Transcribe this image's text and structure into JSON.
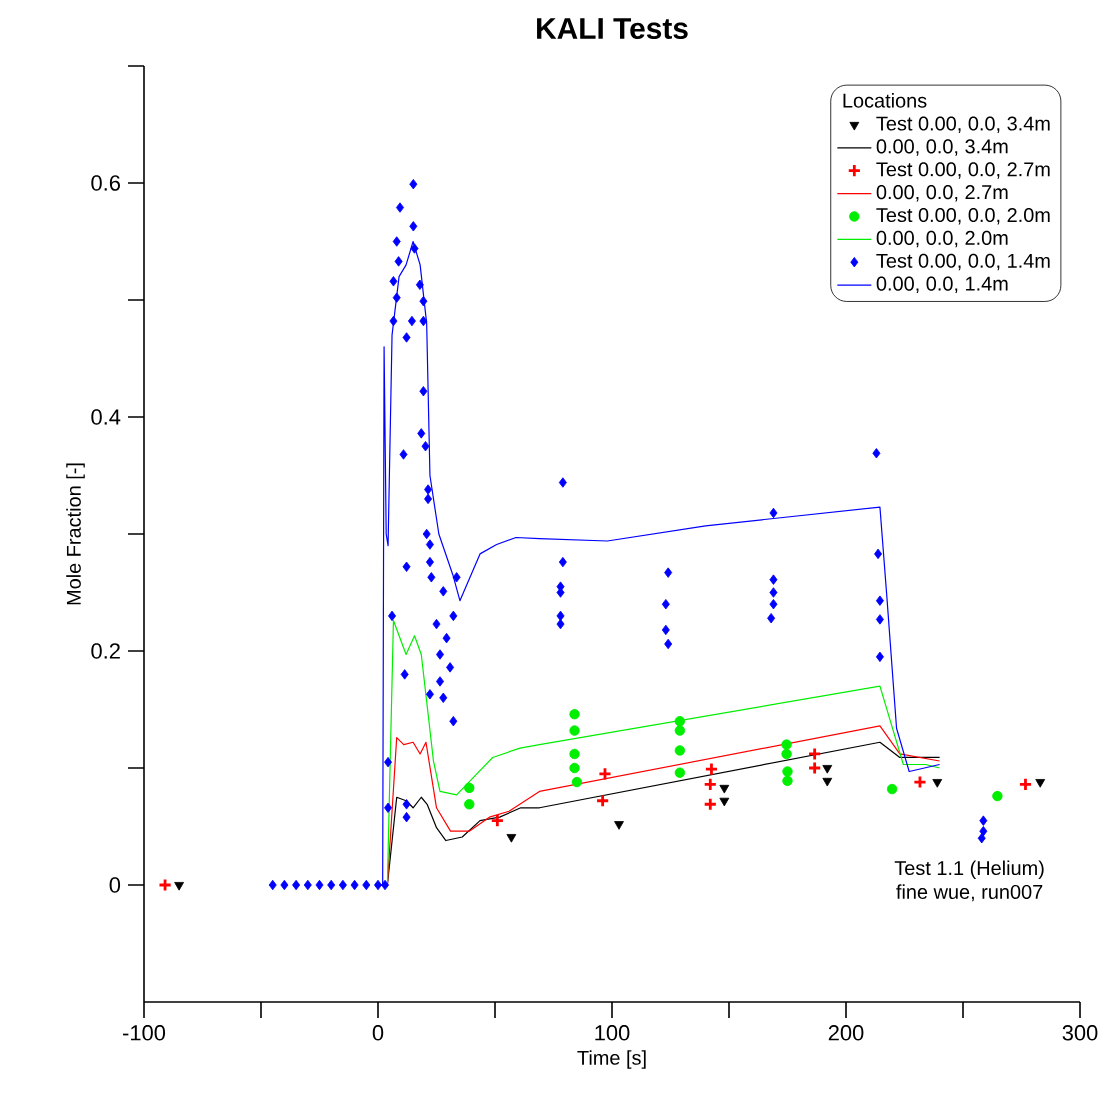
{
  "chart_data": {
    "type": "line",
    "title": "KALI Tests",
    "xlabel": "Time [s]",
    "ylabel": "Mole Fraction [-]",
    "legend_title": "Locations",
    "xlim": [
      -100,
      300
    ],
    "ylim": [
      -0.1,
      0.7
    ],
    "xticks": [
      -100,
      {
        "value": -50,
        "label": null
      },
      0,
      {
        "value": 50,
        "label": null
      },
      100,
      {
        "value": 150,
        "label": null
      },
      200,
      {
        "value": 250,
        "label": null
      },
      300
    ],
    "yticks": [
      0,
      {
        "value": 0.1,
        "label": null
      },
      0.2,
      {
        "value": 0.3,
        "label": null
      },
      0.4,
      {
        "value": 0.5,
        "label": null
      },
      0.6,
      {
        "value": 0.7,
        "label": null
      }
    ],
    "grid": false,
    "legend": "top right",
    "annotations": [
      "Test 1.1 (Helium)",
      "fine wue, run007"
    ],
    "series": [
      {
        "name": "Test 0.00, 0.0, 3.4m",
        "type": "scatter",
        "marker": "triangle",
        "color": "#000000",
        "x": [
          -85,
          57,
          103,
          148,
          148,
          192,
          192,
          239,
          283
        ],
        "values": [
          0,
          0.041,
          0.052,
          0.072,
          0.083,
          0.089,
          0.1,
          0.088,
          0.088
        ]
      },
      {
        "name": "0.00, 0.0, 3.4m",
        "type": "line",
        "color": "#000000",
        "x": [
          0,
          4,
          8,
          12,
          15,
          18.5,
          21,
          25,
          29,
          36,
          43.6,
          52,
          61,
          69,
          214.5,
          223,
          240
        ],
        "values": [
          0,
          0,
          0.075,
          0.072,
          0.066,
          0.075,
          0.069,
          0.049,
          0.038,
          0.041,
          0.055,
          0.058,
          0.066,
          0.066,
          0.122,
          0.109,
          0.109
        ]
      },
      {
        "name": "Test 0.00, 0.0, 2.7m",
        "type": "scatter",
        "marker": "cross",
        "color": "#ff0000",
        "x": [
          -91,
          51,
          97,
          96,
          142.5,
          142,
          142,
          186.6,
          186.6,
          231.6,
          276.7
        ],
        "values": [
          0,
          0.055,
          0.095,
          0.072,
          0.099,
          0.086,
          0.069,
          0.112,
          0.1,
          0.088,
          0.086
        ]
      },
      {
        "name": "0.00, 0.0, 2.7m",
        "type": "line",
        "color": "#ff0000",
        "x": [
          0,
          4,
          8,
          11,
          15,
          18,
          20.5,
          25,
          31,
          39,
          47.6,
          56,
          69,
          214.5,
          223,
          240
        ],
        "values": [
          0,
          0,
          0.126,
          0.12,
          0.122,
          0.112,
          0.122,
          0.066,
          0.046,
          0.046,
          0.058,
          0.063,
          0.08,
          0.136,
          0.112,
          0.106
        ]
      },
      {
        "name": "Test 0.00, 0.0, 2.0m",
        "type": "scatter",
        "marker": "circle",
        "color": "#00ee00",
        "x": [
          39,
          39,
          84,
          84,
          84,
          84,
          85,
          129,
          129,
          129,
          129,
          174.6,
          174.6,
          175,
          175,
          219.7,
          264.7
        ],
        "values": [
          0.083,
          0.069,
          0.146,
          0.132,
          0.112,
          0.1,
          0.088,
          0.14,
          0.132,
          0.115,
          0.096,
          0.12,
          0.112,
          0.097,
          0.089,
          0.082,
          0.076
        ]
      },
      {
        "name": "0.00, 0.0, 2.0m",
        "type": "line",
        "color": "#00ee00",
        "x": [
          0,
          4,
          6.6,
          12,
          15.6,
          18.5,
          23.7,
          26.5,
          33.6,
          40.8,
          49,
          60.7,
          69,
          214.5,
          224.5,
          234,
          240
        ],
        "values": [
          0,
          0,
          0.226,
          0.197,
          0.213,
          0.197,
          0.106,
          0.08,
          0.077,
          0.092,
          0.109,
          0.117,
          0.12,
          0.17,
          0.103,
          0.103,
          0.1
        ]
      },
      {
        "name": "Test 0.00, 0.0, 1.4m",
        "type": "scatter",
        "marker": "diamond",
        "color": "#0000ff",
        "x": [
          -45,
          -40,
          -35,
          -30,
          -25,
          -20,
          -15,
          -10,
          -5,
          0,
          3,
          15.1,
          9.4,
          15.1,
          8,
          15.6,
          8.8,
          6.6,
          17.9,
          8,
          19.4,
          6.6,
          14.5,
          19.4,
          12.2,
          19.4,
          10.9,
          18.5,
          20.3,
          21.4,
          21.4,
          20.8,
          22.2,
          12.2,
          22.2,
          33.6,
          22.8,
          27.9,
          6,
          32.2,
          25,
          29.3,
          26.5,
          11.4,
          30.8,
          26.5,
          22.2,
          27.9,
          32.2,
          4.3,
          4.3,
          12.2,
          12.2,
          79,
          79,
          78,
          78,
          78,
          78,
          124,
          123,
          123,
          124,
          169,
          169,
          169,
          169,
          168,
          213.7,
          213,
          214.5,
          214.5,
          214.5,
          258.7,
          258.7,
          258
        ],
        "values": [
          0,
          0,
          0,
          0,
          0,
          0,
          0,
          0,
          0,
          0,
          0,
          0.599,
          0.579,
          0.563,
          0.55,
          0.544,
          0.533,
          0.516,
          0.513,
          0.502,
          0.499,
          0.482,
          0.482,
          0.482,
          0.468,
          0.422,
          0.368,
          0.386,
          0.375,
          0.338,
          0.33,
          0.3,
          0.291,
          0.272,
          0.276,
          0.263,
          0.263,
          0.251,
          0.23,
          0.23,
          0.223,
          0.211,
          0.197,
          0.18,
          0.186,
          0.174,
          0.163,
          0.16,
          0.14,
          0.105,
          0.066,
          0.058,
          0.069,
          0.344,
          0.276,
          0.255,
          0.25,
          0.23,
          0.223,
          0.267,
          0.24,
          0.218,
          0.206,
          0.318,
          0.261,
          0.25,
          0.24,
          0.228,
          0.283,
          0.369,
          0.243,
          0.227,
          0.195,
          0.055,
          0.046,
          0.04
        ]
      },
      {
        "name": "0.00, 0.0, 1.4m",
        "type": "line",
        "color": "#0000ff",
        "x": [
          0,
          2,
          2.6,
          3.5,
          4.3,
          6,
          9,
          12,
          15,
          18,
          20.8,
          22.2,
          26,
          32,
          35,
          43.6,
          50.7,
          59,
          69,
          98,
          140,
          214.5,
          217.4,
          221.6,
          227,
          240
        ],
        "values": [
          0,
          0,
          0.46,
          0.3,
          0.29,
          0.47,
          0.52,
          0.53,
          0.55,
          0.53,
          0.48,
          0.35,
          0.3,
          0.265,
          0.243,
          0.283,
          0.291,
          0.297,
          0.296,
          0.294,
          0.307,
          0.323,
          0.248,
          0.134,
          0.097,
          0.103
        ]
      }
    ]
  }
}
